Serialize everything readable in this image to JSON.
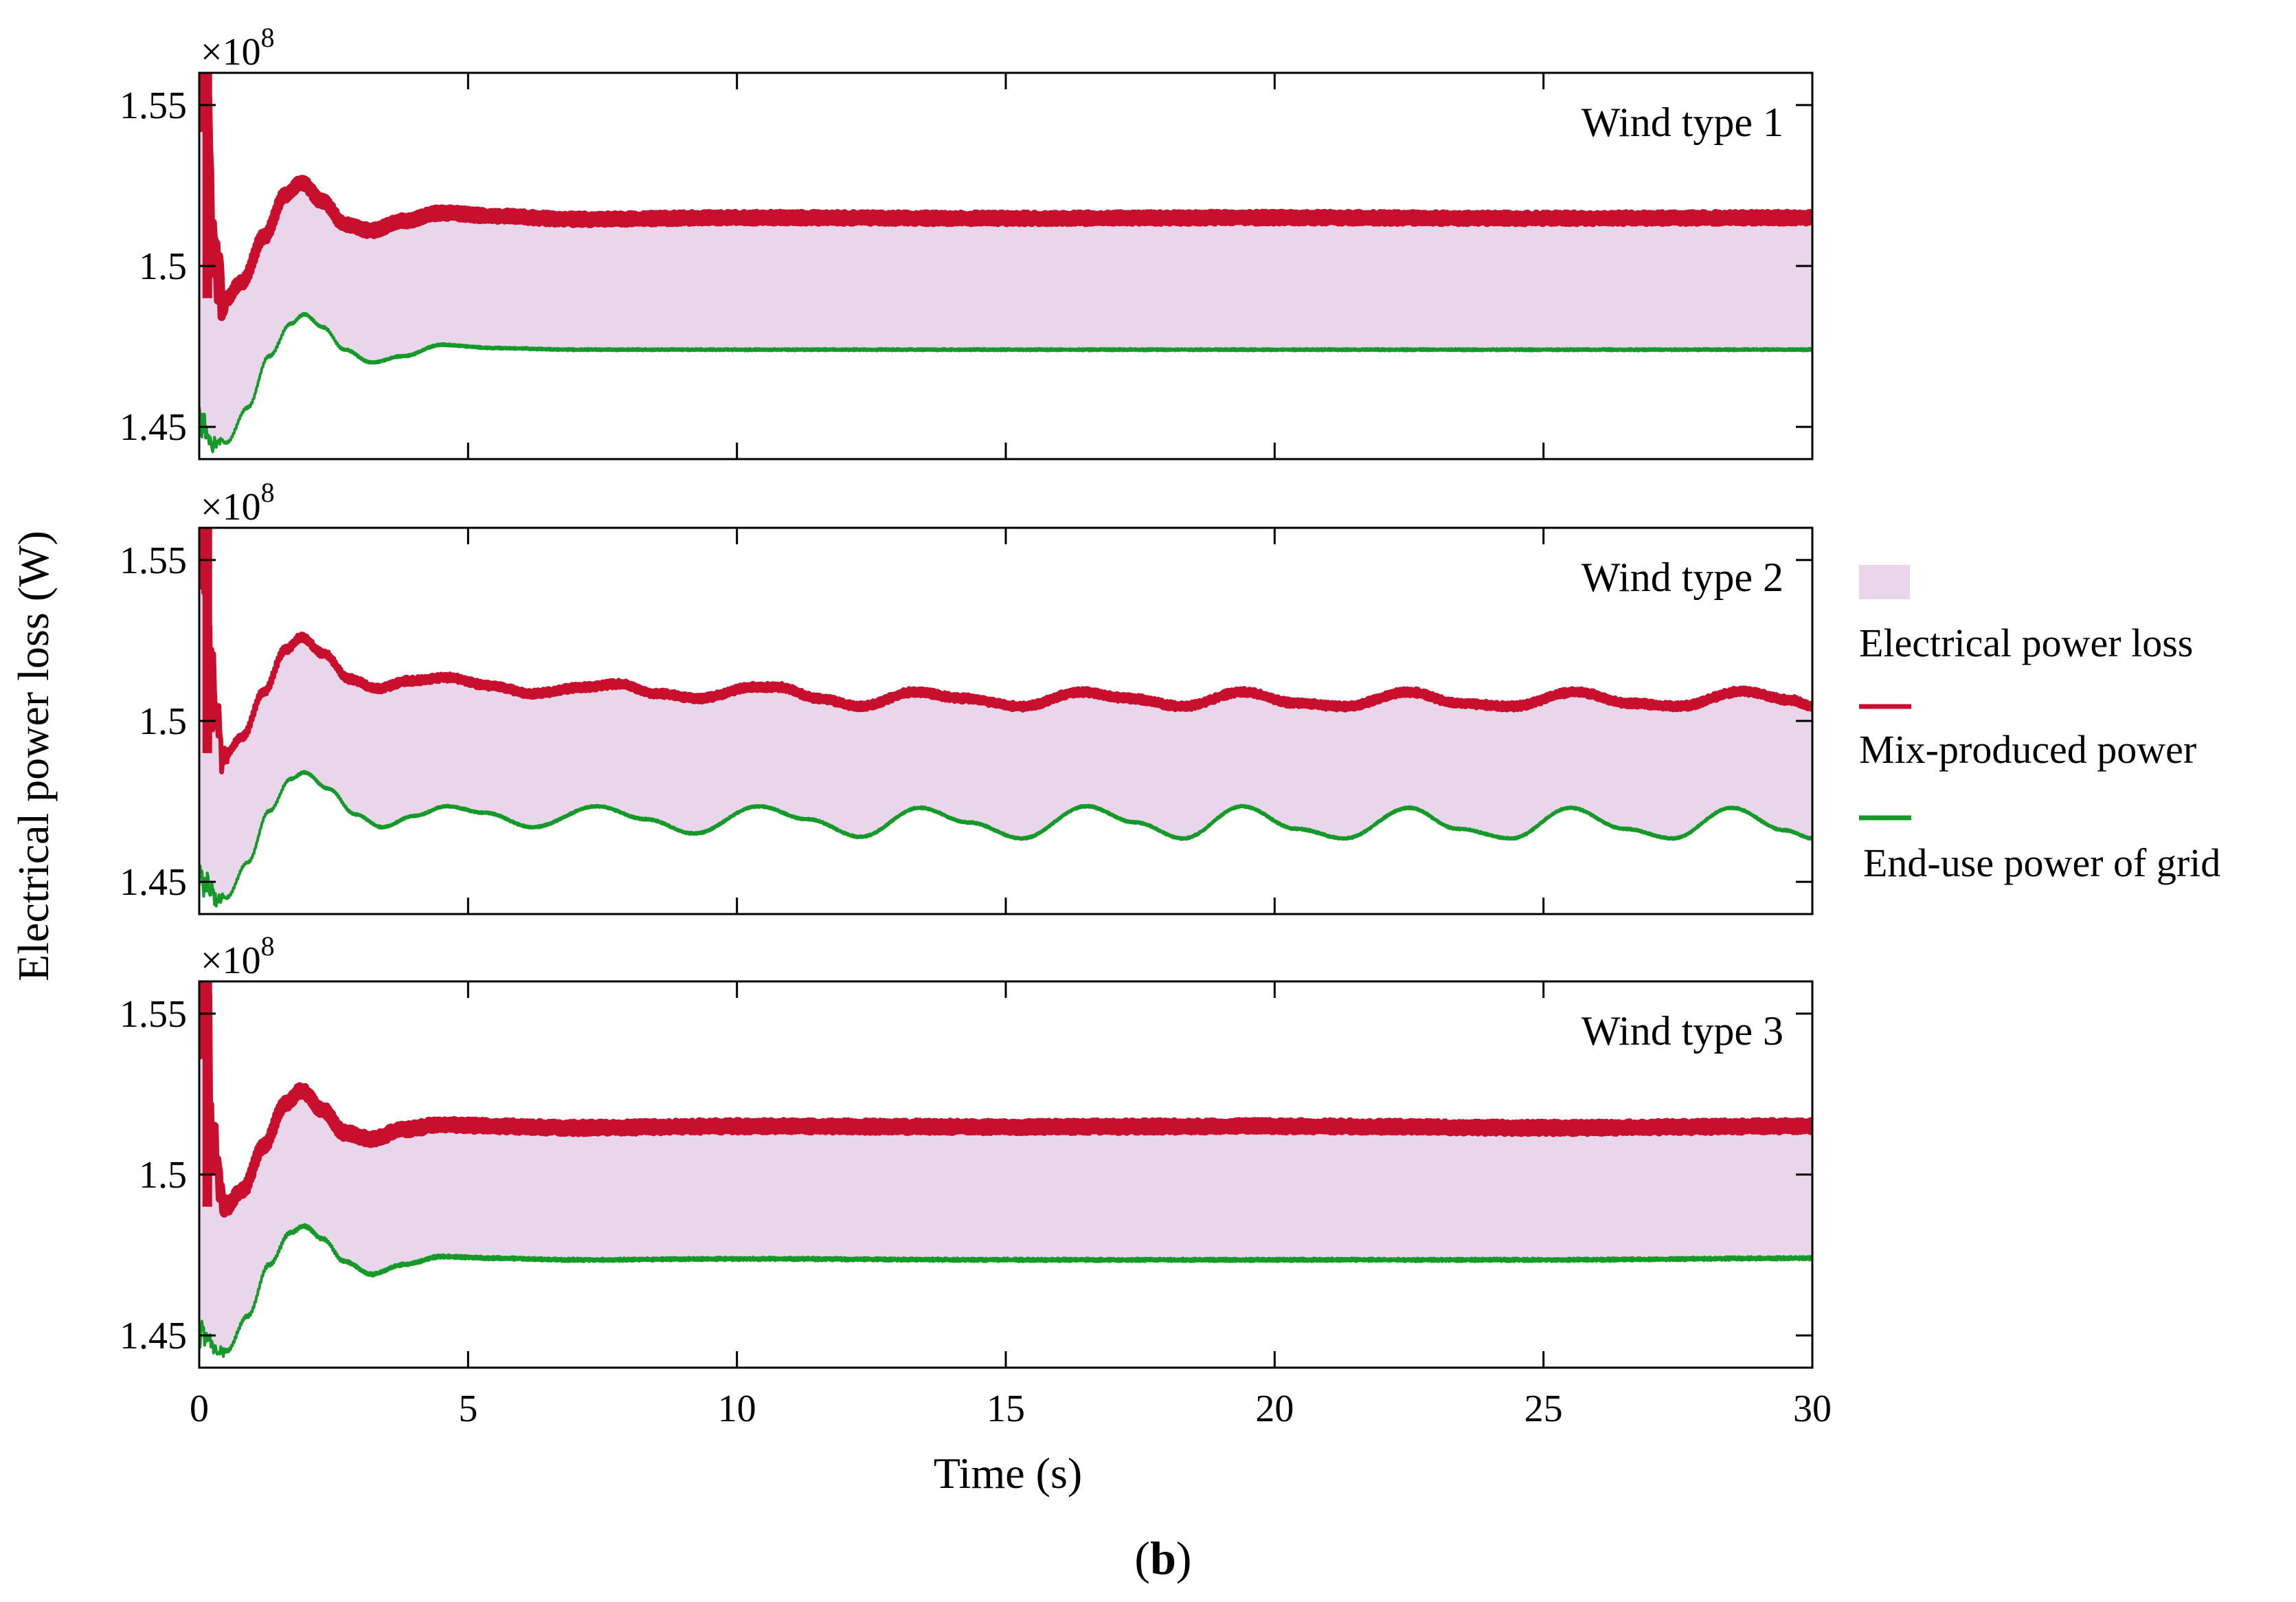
{
  "chart_data": {
    "type": "line",
    "ylabel": "Electrical power loss (W)",
    "xlabel": "Time (s)",
    "caption": {
      "open": "(",
      "letter": "b",
      "close": ")"
    },
    "xlim": [
      0,
      30
    ],
    "x_ticks": [
      0,
      5,
      10,
      15,
      20,
      25,
      30
    ],
    "x_tick_labels": [
      "0",
      "5",
      "10",
      "15",
      "20",
      "25",
      "30"
    ],
    "y_ticks": [
      1.45,
      1.5,
      1.55
    ],
    "y_tick_labels": [
      "1.45",
      "1.5",
      "1.55"
    ],
    "y_exponent": {
      "base": "×10",
      "power": "8"
    },
    "ylim": [
      1.44,
      1.56
    ],
    "legend": [
      {
        "label": "Electrical power loss",
        "kind": "patch",
        "color": "#ead6ea"
      },
      {
        "label": "Mix-produced power",
        "kind": "line",
        "color": "#c8102e"
      },
      {
        "label": "End-use power of grid",
        "kind": "line",
        "color": "#159a2a"
      }
    ],
    "colors": {
      "mix": "#c8102e",
      "enduse": "#159a2a",
      "loss": "#ead6ea"
    },
    "panels": [
      {
        "title": "Wind type 1",
        "mix_points": [
          [
            0.1,
            1.56
          ],
          [
            0.25,
            1.51
          ],
          [
            0.45,
            1.489
          ],
          [
            0.8,
            1.495
          ],
          [
            1.2,
            1.509
          ],
          [
            1.6,
            1.522
          ],
          [
            1.9,
            1.526
          ],
          [
            2.3,
            1.52
          ],
          [
            2.7,
            1.513
          ],
          [
            3.2,
            1.511
          ],
          [
            3.8,
            1.514
          ],
          [
            4.5,
            1.5165
          ],
          [
            5.5,
            1.5155
          ],
          [
            7,
            1.5145
          ],
          [
            10,
            1.515
          ],
          [
            15,
            1.5148
          ],
          [
            20,
            1.515
          ],
          [
            25,
            1.5148
          ],
          [
            30,
            1.515
          ]
        ],
        "mix_noise": 0.0015,
        "enduse_points": [
          [
            0.1,
            1.45
          ],
          [
            0.3,
            1.445
          ],
          [
            0.5,
            1.445
          ],
          [
            0.9,
            1.456
          ],
          [
            1.3,
            1.472
          ],
          [
            1.7,
            1.482
          ],
          [
            1.95,
            1.485
          ],
          [
            2.3,
            1.481
          ],
          [
            2.7,
            1.474
          ],
          [
            3.2,
            1.47
          ],
          [
            3.8,
            1.472
          ],
          [
            4.5,
            1.4755
          ],
          [
            5.5,
            1.4745
          ],
          [
            7,
            1.474
          ],
          [
            10,
            1.474
          ],
          [
            15,
            1.474
          ],
          [
            20,
            1.474
          ],
          [
            25,
            1.474
          ],
          [
            30,
            1.474
          ]
        ],
        "enduse_noise": 0.0004
      },
      {
        "title": "Wind type 2",
        "mix_points": [
          [
            0.1,
            1.56
          ],
          [
            0.25,
            1.51
          ],
          [
            0.45,
            1.489
          ],
          [
            0.8,
            1.495
          ],
          [
            1.2,
            1.509
          ],
          [
            1.6,
            1.522
          ],
          [
            1.9,
            1.526
          ],
          [
            2.3,
            1.521
          ],
          [
            2.8,
            1.513
          ],
          [
            3.3,
            1.51
          ],
          [
            3.9,
            1.5125
          ],
          [
            4.6,
            1.5135
          ],
          [
            5.4,
            1.511
          ],
          [
            6.2,
            1.5085
          ],
          [
            7.2,
            1.5105
          ],
          [
            7.8,
            1.5115
          ],
          [
            8.5,
            1.5085
          ],
          [
            9.3,
            1.507
          ],
          [
            10.3,
            1.5105
          ],
          [
            10.8,
            1.5105
          ],
          [
            11.5,
            1.507
          ],
          [
            12.3,
            1.5045
          ],
          [
            13.3,
            1.509
          ],
          [
            14.2,
            1.507
          ],
          [
            15.3,
            1.5045
          ],
          [
            16.4,
            1.509
          ],
          [
            17.3,
            1.507
          ],
          [
            18.3,
            1.5045
          ],
          [
            19.4,
            1.509
          ],
          [
            20.4,
            1.5055
          ],
          [
            21.3,
            1.5045
          ],
          [
            22.5,
            1.509
          ],
          [
            23.4,
            1.5055
          ],
          [
            24.4,
            1.5045
          ],
          [
            25.6,
            1.509
          ],
          [
            26.6,
            1.5055
          ],
          [
            27.5,
            1.5045
          ],
          [
            28.7,
            1.5092
          ],
          [
            29.6,
            1.5065
          ],
          [
            30,
            1.5045
          ]
        ],
        "mix_noise": 0.0012,
        "enduse_points": [
          [
            0.1,
            1.45
          ],
          [
            0.3,
            1.445
          ],
          [
            0.5,
            1.445
          ],
          [
            0.9,
            1.456
          ],
          [
            1.3,
            1.472
          ],
          [
            1.7,
            1.482
          ],
          [
            1.95,
            1.484
          ],
          [
            2.4,
            1.479
          ],
          [
            2.9,
            1.471
          ],
          [
            3.4,
            1.467
          ],
          [
            4.0,
            1.4705
          ],
          [
            4.6,
            1.4735
          ],
          [
            5.3,
            1.4715
          ],
          [
            6.2,
            1.467
          ],
          [
            7.4,
            1.4735
          ],
          [
            8.3,
            1.4695
          ],
          [
            9.2,
            1.465
          ],
          [
            10.4,
            1.4735
          ],
          [
            11.3,
            1.4695
          ],
          [
            12.3,
            1.464
          ],
          [
            13.4,
            1.473
          ],
          [
            14.3,
            1.4685
          ],
          [
            15.3,
            1.4635
          ],
          [
            16.5,
            1.4735
          ],
          [
            17.4,
            1.4685
          ],
          [
            18.3,
            1.4635
          ],
          [
            19.4,
            1.4735
          ],
          [
            20.4,
            1.4665
          ],
          [
            21.3,
            1.4635
          ],
          [
            22.5,
            1.473
          ],
          [
            23.4,
            1.4665
          ],
          [
            24.4,
            1.4635
          ],
          [
            25.5,
            1.473
          ],
          [
            26.5,
            1.4665
          ],
          [
            27.4,
            1.4635
          ],
          [
            28.5,
            1.473
          ],
          [
            29.5,
            1.466
          ],
          [
            30,
            1.4635
          ]
        ],
        "enduse_noise": 0.0004
      },
      {
        "title": "Wind type 3",
        "mix_points": [
          [
            0.1,
            1.56
          ],
          [
            0.25,
            1.51
          ],
          [
            0.45,
            1.489
          ],
          [
            0.8,
            1.495
          ],
          [
            1.2,
            1.509
          ],
          [
            1.6,
            1.522
          ],
          [
            1.9,
            1.526
          ],
          [
            2.3,
            1.52
          ],
          [
            2.7,
            1.513
          ],
          [
            3.2,
            1.511
          ],
          [
            3.8,
            1.514
          ],
          [
            4.5,
            1.5155
          ],
          [
            5.5,
            1.515
          ],
          [
            7,
            1.5145
          ],
          [
            10,
            1.515
          ],
          [
            15,
            1.5148
          ],
          [
            20,
            1.515
          ],
          [
            25,
            1.5145
          ],
          [
            30,
            1.515
          ]
        ],
        "mix_noise": 0.0016,
        "enduse_points": [
          [
            0.1,
            1.45
          ],
          [
            0.3,
            1.445
          ],
          [
            0.5,
            1.445
          ],
          [
            0.9,
            1.456
          ],
          [
            1.3,
            1.472
          ],
          [
            1.7,
            1.482
          ],
          [
            1.95,
            1.484
          ],
          [
            2.3,
            1.48
          ],
          [
            2.7,
            1.473
          ],
          [
            3.2,
            1.469
          ],
          [
            3.8,
            1.472
          ],
          [
            4.5,
            1.4745
          ],
          [
            5.5,
            1.474
          ],
          [
            7,
            1.4735
          ],
          [
            10,
            1.4738
          ],
          [
            15,
            1.4735
          ],
          [
            20,
            1.4735
          ],
          [
            25,
            1.4735
          ],
          [
            30,
            1.474
          ]
        ],
        "enduse_noise": 0.0006
      }
    ]
  }
}
